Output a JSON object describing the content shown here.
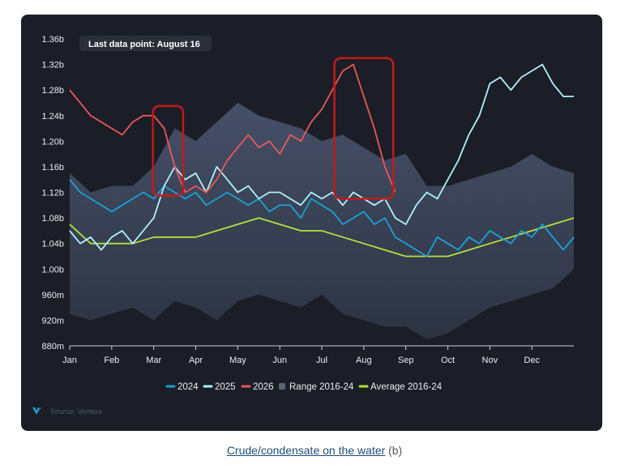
{
  "caption": {
    "link_text": "Crude/condensate on the water",
    "suffix": " (b)"
  },
  "annotation": {
    "text": "Last data point: August 16"
  },
  "source": {
    "text": "Source: Vortexa",
    "icon": "vortexa-logo-icon"
  },
  "colors": {
    "background": "#1b1e26",
    "series_2024": "#1aa1d6",
    "series_2025": "#aef1ff",
    "series_2026": "#e8585a",
    "range": "#3e4658",
    "average": "#b3e23a",
    "highlight_box": "#c21a1a"
  },
  "chart_data": {
    "type": "line",
    "title": "",
    "xlabel": "",
    "ylabel": "",
    "x_ticks": [
      "Jan",
      "Feb",
      "Mar",
      "Apr",
      "May",
      "Jun",
      "Jul",
      "Aug",
      "Sep",
      "Oct",
      "Nov",
      "Dec"
    ],
    "y_ticks": [
      "880m",
      "920m",
      "960m",
      "1.00b",
      "1.04b",
      "1.08b",
      "1.12b",
      "1.16b",
      "1.20b",
      "1.24b",
      "1.28b",
      "1.32b",
      "1.36b"
    ],
    "ylim": [
      0.88,
      1.36
    ],
    "y_unit": "billion barrels",
    "legend_position": "bottom-center",
    "grid": false,
    "range": {
      "name": "Range 2016-24",
      "x": [
        0,
        0.5,
        1,
        1.5,
        2,
        2.5,
        3,
        3.5,
        4,
        4.5,
        5,
        5.5,
        6,
        6.5,
        7,
        7.5,
        8,
        8.5,
        9,
        9.5,
        10,
        10.5,
        11,
        11.5,
        12
      ],
      "low": [
        0.93,
        0.92,
        0.93,
        0.94,
        0.92,
        0.95,
        0.94,
        0.92,
        0.95,
        0.96,
        0.95,
        0.94,
        0.96,
        0.93,
        0.92,
        0.91,
        0.91,
        0.89,
        0.9,
        0.92,
        0.94,
        0.95,
        0.96,
        0.97,
        1.0
      ],
      "high": [
        1.15,
        1.12,
        1.13,
        1.13,
        1.16,
        1.22,
        1.2,
        1.23,
        1.26,
        1.24,
        1.23,
        1.22,
        1.2,
        1.21,
        1.19,
        1.17,
        1.18,
        1.13,
        1.13,
        1.14,
        1.15,
        1.16,
        1.18,
        1.16,
        1.15
      ]
    },
    "series": [
      {
        "name": "2024",
        "x": [
          0,
          0.25,
          0.5,
          0.75,
          1,
          1.25,
          1.5,
          1.75,
          2,
          2.25,
          2.5,
          2.75,
          3,
          3.25,
          3.5,
          3.75,
          4,
          4.25,
          4.5,
          4.75,
          5,
          5.25,
          5.5,
          5.75,
          6,
          6.25,
          6.5,
          6.75,
          7,
          7.25,
          7.5,
          7.75,
          8,
          8.25,
          8.5,
          8.75,
          9,
          9.25,
          9.5,
          9.75,
          10,
          10.25,
          10.5,
          10.75,
          11,
          11.25,
          11.5,
          11.75,
          12
        ],
        "y": [
          1.14,
          1.12,
          1.11,
          1.1,
          1.09,
          1.1,
          1.11,
          1.12,
          1.11,
          1.13,
          1.12,
          1.11,
          1.12,
          1.1,
          1.11,
          1.12,
          1.11,
          1.1,
          1.11,
          1.09,
          1.1,
          1.1,
          1.08,
          1.11,
          1.1,
          1.09,
          1.07,
          1.08,
          1.09,
          1.07,
          1.08,
          1.05,
          1.04,
          1.03,
          1.02,
          1.05,
          1.04,
          1.03,
          1.05,
          1.04,
          1.06,
          1.05,
          1.04,
          1.06,
          1.05,
          1.07,
          1.05,
          1.03,
          1.05
        ]
      },
      {
        "name": "2025",
        "x": [
          0,
          0.25,
          0.5,
          0.75,
          1,
          1.25,
          1.5,
          1.75,
          2,
          2.25,
          2.5,
          2.75,
          3,
          3.25,
          3.5,
          3.75,
          4,
          4.25,
          4.5,
          4.75,
          5,
          5.25,
          5.5,
          5.75,
          6,
          6.25,
          6.5,
          6.75,
          7,
          7.25,
          7.5,
          7.75,
          8,
          8.25,
          8.5,
          8.75,
          9,
          9.25,
          9.5,
          9.75,
          10,
          10.25,
          10.5,
          10.75,
          11,
          11.25,
          11.5,
          11.75,
          12
        ],
        "y": [
          1.06,
          1.04,
          1.05,
          1.03,
          1.05,
          1.06,
          1.04,
          1.06,
          1.08,
          1.13,
          1.16,
          1.14,
          1.15,
          1.12,
          1.16,
          1.14,
          1.12,
          1.13,
          1.11,
          1.12,
          1.12,
          1.11,
          1.1,
          1.12,
          1.11,
          1.12,
          1.1,
          1.12,
          1.11,
          1.1,
          1.11,
          1.08,
          1.07,
          1.1,
          1.12,
          1.11,
          1.14,
          1.17,
          1.21,
          1.24,
          1.29,
          1.3,
          1.28,
          1.3,
          1.31,
          1.32,
          1.29,
          1.27,
          1.27
        ]
      },
      {
        "name": "2026",
        "x": [
          0,
          0.25,
          0.5,
          0.75,
          1,
          1.25,
          1.5,
          1.75,
          2,
          2.25,
          2.5,
          2.75,
          3,
          3.25,
          3.5,
          3.75,
          4,
          4.25,
          4.5,
          4.75,
          5,
          5.25,
          5.5,
          5.75,
          6,
          6.25,
          6.5,
          6.75,
          7,
          7.25,
          7.5,
          7.75
        ],
        "y": [
          1.28,
          1.26,
          1.24,
          1.23,
          1.22,
          1.21,
          1.23,
          1.24,
          1.24,
          1.22,
          1.16,
          1.12,
          1.13,
          1.12,
          1.14,
          1.17,
          1.19,
          1.21,
          1.19,
          1.2,
          1.18,
          1.21,
          1.2,
          1.23,
          1.25,
          1.28,
          1.31,
          1.32,
          1.27,
          1.22,
          1.16,
          1.12
        ]
      },
      {
        "name": "Average 2016-24",
        "x": [
          0,
          0.5,
          1,
          1.5,
          2,
          2.5,
          3,
          3.5,
          4,
          4.5,
          5,
          5.5,
          6,
          6.5,
          7,
          7.5,
          8,
          8.5,
          9,
          9.5,
          10,
          10.5,
          11,
          11.5,
          12
        ],
        "y": [
          1.07,
          1.04,
          1.04,
          1.04,
          1.05,
          1.05,
          1.05,
          1.06,
          1.07,
          1.08,
          1.07,
          1.06,
          1.06,
          1.05,
          1.04,
          1.03,
          1.02,
          1.02,
          1.02,
          1.03,
          1.04,
          1.05,
          1.06,
          1.07,
          1.08
        ]
      }
    ],
    "highlights": [
      {
        "x_start": 1.98,
        "x_end": 2.7,
        "y_low": 1.115,
        "y_high": 1.255
      },
      {
        "x_start": 6.3,
        "x_end": 7.7,
        "y_low": 1.11,
        "y_high": 1.33
      }
    ]
  },
  "legend": [
    {
      "label": "2024",
      "color_key": "series_2024"
    },
    {
      "label": "2025",
      "color_key": "series_2025"
    },
    {
      "label": "2026",
      "color_key": "series_2026"
    },
    {
      "label": "Range 2016-24",
      "color_key": "range"
    },
    {
      "label": "Average 2016-24",
      "color_key": "average"
    }
  ]
}
